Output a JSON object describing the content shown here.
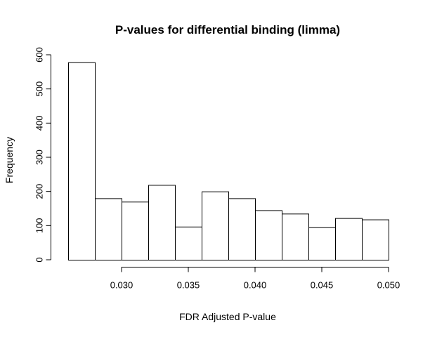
{
  "chart_data": {
    "type": "bar",
    "title": "P-values for differential binding (limma)",
    "xlabel": "FDR Adjusted P-value",
    "ylabel": "Frequency",
    "bin_edges": [
      0.026,
      0.028,
      0.03,
      0.032,
      0.034,
      0.036,
      0.038,
      0.04,
      0.042,
      0.044,
      0.046,
      0.048,
      0.05
    ],
    "values": [
      578,
      180,
      170,
      219,
      97,
      200,
      180,
      145,
      135,
      95,
      122,
      118
    ],
    "xlim": [
      0.026,
      0.05
    ],
    "ylim": [
      0,
      600
    ],
    "x_ticks": [
      "0.030",
      "0.035",
      "0.040",
      "0.045",
      "0.050"
    ],
    "y_ticks": [
      "0",
      "100",
      "200",
      "300",
      "400",
      "500",
      "600"
    ],
    "grid": false,
    "bar_fill": "#ffffff",
    "bar_stroke": "#000000"
  }
}
